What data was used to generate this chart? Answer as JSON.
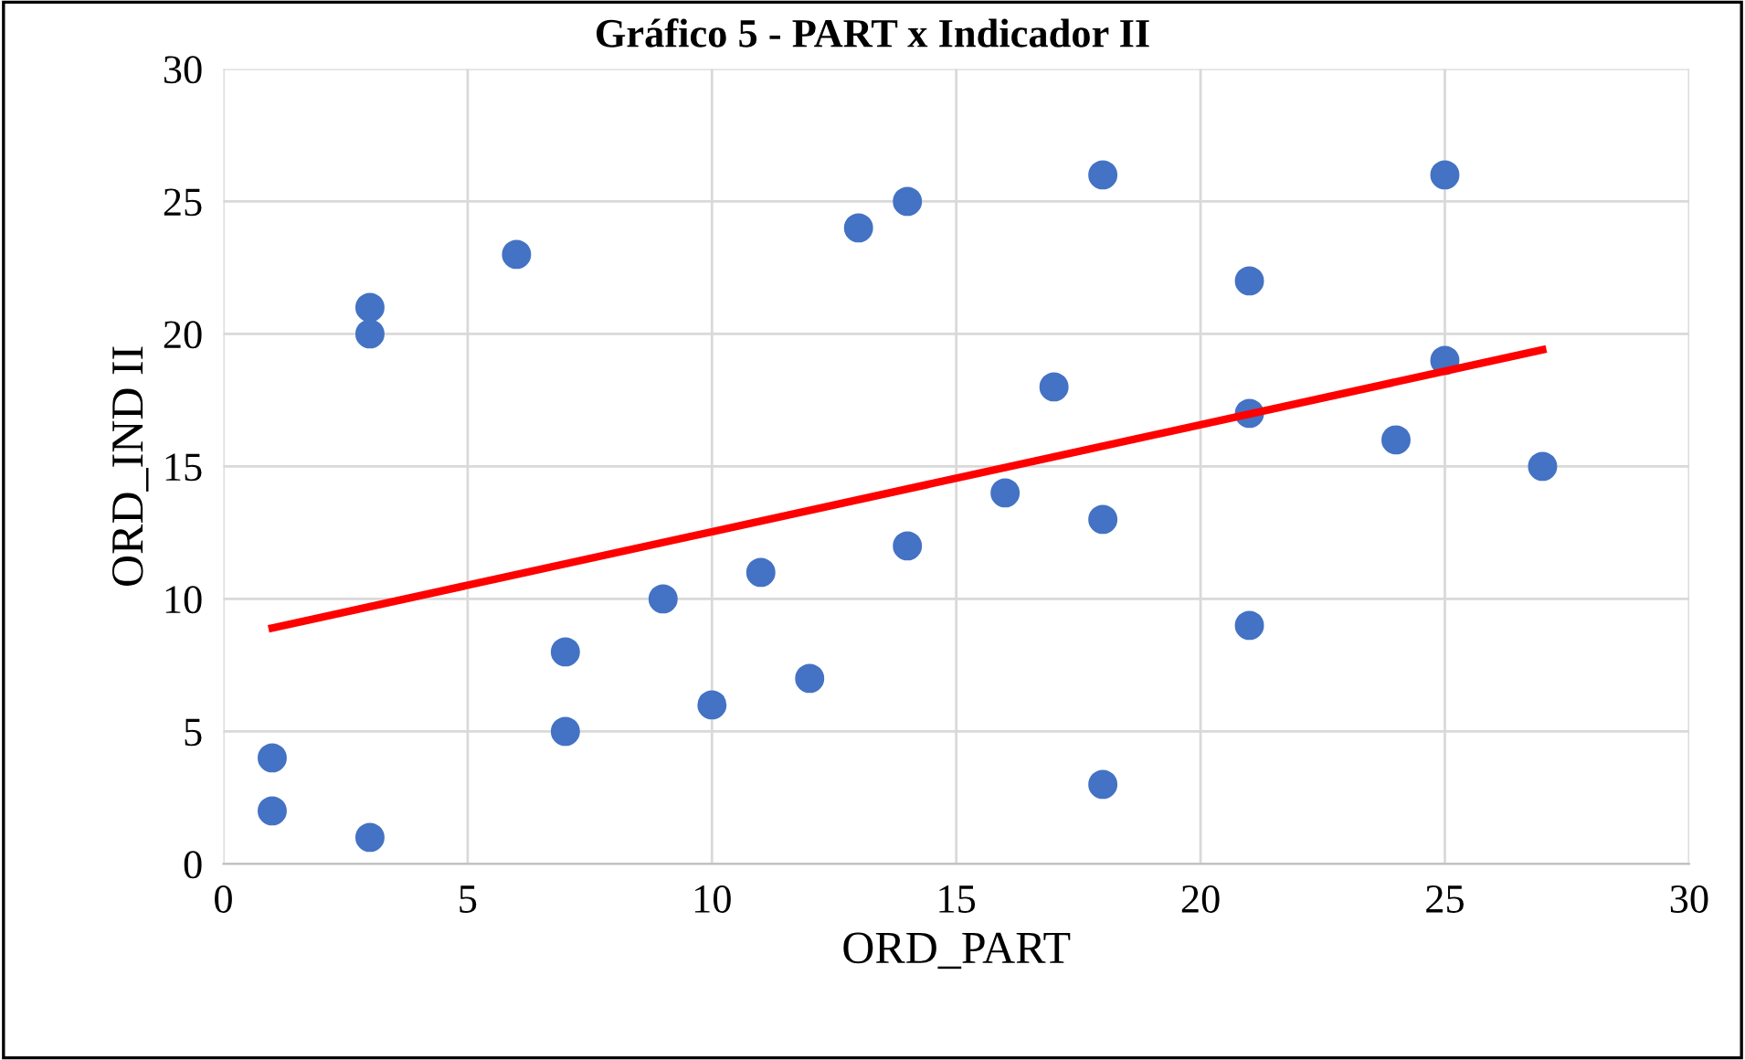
{
  "chart_data": {
    "type": "scatter",
    "title": "Gráfico 5 - PART x Indicador II",
    "xlabel": "ORD_PART",
    "ylabel": "ORD_IND II",
    "series": [
      {
        "color": "#4472c4",
        "x": [
          1,
          1,
          3,
          3,
          3,
          6,
          7,
          7,
          9,
          10,
          11,
          12,
          13,
          14,
          14,
          16,
          17,
          18,
          18,
          18,
          21,
          21,
          21,
          24,
          25,
          25,
          27
        ],
        "values": [
          4,
          2,
          1,
          21,
          20,
          23,
          8,
          5,
          10,
          6,
          11,
          7,
          24,
          25,
          12,
          14,
          18,
          26,
          13,
          3,
          22,
          17,
          9,
          16,
          26,
          19,
          15
        ]
      },
      {
        "type": "line",
        "marker": "none",
        "color": "#ff0000",
        "x": [
          1,
          27
        ],
        "values": [
          8.9,
          19.4
        ]
      }
    ],
    "xlim": [
      0,
      30
    ],
    "xticks": [
      0,
      5,
      10,
      15,
      20,
      25,
      30
    ],
    "ylim": [
      0,
      30
    ],
    "yticks": [
      0,
      5,
      10,
      15,
      20,
      25,
      30
    ],
    "grid": true,
    "marker": "circle"
  }
}
